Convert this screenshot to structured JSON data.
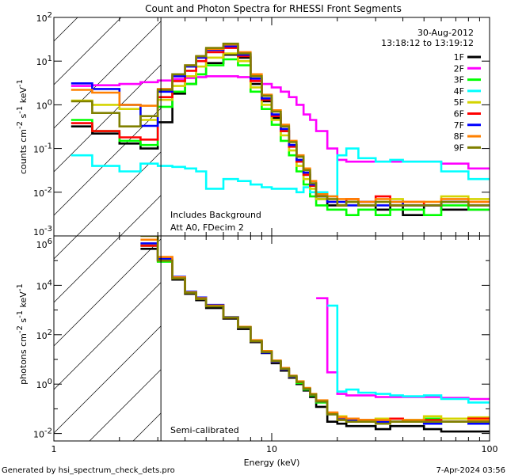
{
  "chart_data": {
    "title": "Count and Photon Spectra for RHESSI Front Segments",
    "date": "30-Aug-2012",
    "time_range": "13:18:12 to 13:19:12",
    "xlabel": "Energy (keV)",
    "xscale": "log",
    "xlim": [
      1,
      100
    ],
    "x_ticks": [
      "1",
      "10",
      "100"
    ],
    "footer_left": "Generated by hsi_spectrum_check_dets.pro",
    "footer_right": "7-Apr-2024 03:56",
    "legend_placement": "top-right",
    "energy_edges": [
      1.2,
      1.5,
      2,
      2.5,
      3,
      3.5,
      4,
      4.5,
      5,
      6,
      7,
      8,
      9,
      10,
      11,
      12,
      13,
      14,
      15,
      16,
      18,
      20,
      22,
      25,
      30,
      35,
      40,
      50,
      60,
      80,
      100
    ],
    "attenuator_boundary_keV": 3.1,
    "series_meta": [
      {
        "name": "1F",
        "color": "#000000"
      },
      {
        "name": "2F",
        "color": "#ff00ff"
      },
      {
        "name": "3F",
        "color": "#00ff00"
      },
      {
        "name": "4F",
        "color": "#00ffff"
      },
      {
        "name": "5F",
        "color": "#d4d400"
      },
      {
        "name": "6F",
        "color": "#ff0000"
      },
      {
        "name": "7F",
        "color": "#0000ff"
      },
      {
        "name": "8F",
        "color": "#ff8000"
      },
      {
        "name": "9F",
        "color": "#808000"
      }
    ],
    "panels": [
      {
        "type": "line",
        "step": true,
        "ylabel": {
          "a": "counts cm",
          "b": "-2",
          "c": " s",
          "d": "-1",
          "e": " keV",
          "f": "-1"
        },
        "yscale": "log",
        "ylim": [
          0.001,
          100
        ],
        "y_ticks": [
          {
            "base": "10",
            "exp": "2"
          },
          {
            "base": "10",
            "exp": "1"
          },
          {
            "base": "10",
            "exp": "0"
          },
          {
            "base": "10",
            "exp": "-1"
          },
          {
            "base": "10",
            "exp": "-2"
          },
          {
            "base": "10",
            "exp": "-3"
          }
        ],
        "annotations": [
          "Includes Background",
          "Att A0, FDecim 2"
        ],
        "series": [
          {
            "name": "1F",
            "values": [
              0.32,
              0.22,
              0.13,
              0.1,
              0.4,
              1.8,
              3,
              5,
              9,
              14,
              12,
              3,
              1.2,
              0.5,
              0.25,
              0.12,
              0.05,
              0.025,
              0.014,
              0.007,
              0.005,
              0.005,
              0.006,
              0.005,
              0.004,
              0.005,
              0.003,
              0.005,
              0.004,
              0.004
            ]
          },
          {
            "name": "2F",
            "values": [
              2.7,
              2.8,
              3,
              3.3,
              3.6,
              3.9,
              4.1,
              4.3,
              4.5,
              4.5,
              4.3,
              3.6,
              3,
              2.5,
              2,
              1.5,
              1.0,
              0.6,
              0.45,
              0.25,
              0.1,
              0.055,
              0.05,
              0.05,
              0.05,
              0.05,
              0.05,
              0.05,
              0.045,
              0.035
            ]
          },
          {
            "name": "3F",
            "values": [
              0.45,
              0.25,
              0.15,
              0.12,
              0.9,
              2,
              3,
              5,
              8,
              11,
              8,
              2,
              0.8,
              0.35,
              0.15,
              0.07,
              0.03,
              0.015,
              0.008,
              0.005,
              0.004,
              0.004,
              0.003,
              0.004,
              0.003,
              0.004,
              0.004,
              0.003,
              0.005,
              0.004
            ]
          },
          {
            "name": "4F",
            "values": [
              0.07,
              0.04,
              0.03,
              0.045,
              0.04,
              0.038,
              0.035,
              0.03,
              0.012,
              0.02,
              0.018,
              0.015,
              0.013,
              0.012,
              0.012,
              0.012,
              0.01,
              0.013,
              0.01,
              0.01,
              0.008,
              0.07,
              0.1,
              0.06,
              0.05,
              0.055,
              0.05,
              0.05,
              0.03,
              0.02
            ]
          },
          {
            "name": "5F",
            "values": [
              1.25,
              1.0,
              0.8,
              0.45,
              1.3,
              2.7,
              4.5,
              7.5,
              12,
              15,
              10,
              2.5,
              1,
              0.45,
              0.2,
              0.09,
              0.04,
              0.02,
              0.012,
              0.007,
              0.006,
              0.006,
              0.006,
              0.005,
              0.006,
              0.007,
              0.005,
              0.006,
              0.008,
              0.007
            ]
          },
          {
            "name": "6F",
            "values": [
              0.38,
              0.25,
              0.18,
              0.16,
              1.5,
              3.5,
              6,
              10,
              16,
              20,
              13,
              3.5,
              1.3,
              0.55,
              0.25,
              0.11,
              0.05,
              0.025,
              0.014,
              0.008,
              0.006,
              0.005,
              0.007,
              0.006,
              0.008,
              0.005,
              0.006,
              0.005,
              0.006,
              0.006
            ]
          },
          {
            "name": "7F",
            "values": [
              3.1,
              2.3,
              1.0,
              0.33,
              2,
              4.5,
              7.5,
              12,
              18,
              22,
              14,
              4,
              1.4,
              0.6,
              0.28,
              0.12,
              0.055,
              0.028,
              0.015,
              0.008,
              0.006,
              0.006,
              0.005,
              0.006,
              0.005,
              0.006,
              0.005,
              0.005,
              0.006,
              0.005
            ]
          },
          {
            "name": "8F",
            "values": [
              2.2,
              1.9,
              1.0,
              0.95,
              2.3,
              5,
              8,
              13,
              19,
              24,
              16,
              5,
              1.7,
              0.75,
              0.35,
              0.15,
              0.07,
              0.035,
              0.018,
              0.009,
              0.008,
              0.007,
              0.007,
              0.006,
              0.007,
              0.006,
              0.006,
              0.006,
              0.007,
              0.006
            ]
          },
          {
            "name": "9F",
            "values": [
              1.2,
              0.65,
              0.32,
              0.55,
              2.2,
              5,
              8,
              13,
              20,
              25,
              15,
              4.5,
              1.6,
              0.7,
              0.32,
              0.14,
              0.065,
              0.032,
              0.016,
              0.008,
              0.007,
              0.005,
              0.006,
              0.005,
              0.006,
              0.005,
              0.005,
              0.005,
              0.006,
              0.005
            ]
          }
        ]
      },
      {
        "type": "line",
        "step": true,
        "ylabel": {
          "a": "photons cm",
          "b": "-2",
          "c": " s",
          "d": "-1",
          "e": " keV",
          "f": "-1"
        },
        "yscale": "log",
        "ylim": [
          0.005,
          1000000
        ],
        "y_ticks": [
          {
            "base": "10",
            "exp": "6"
          },
          {
            "base": "10",
            "exp": "4"
          },
          {
            "base": "10",
            "exp": "2"
          },
          {
            "base": "10",
            "exp": "0"
          },
          {
            "base": "10",
            "exp": "-2"
          }
        ],
        "annotations": [
          "Semi-calibrated"
        ],
        "series": [
          {
            "name": "1F",
            "values": [
              null,
              null,
              null,
              300000,
              100000,
              17000,
              4500,
              2500,
              1200,
              450,
              170,
              50,
              18,
              7,
              3.5,
              1.8,
              1.0,
              0.55,
              0.3,
              0.12,
              0.03,
              0.025,
              0.02,
              0.02,
              0.015,
              0.02,
              0.02,
              0.015,
              0.012,
              0.012
            ]
          },
          {
            "name": "2F",
            "values": [
              null,
              null,
              null,
              null,
              null,
              null,
              null,
              null,
              null,
              null,
              null,
              null,
              null,
              null,
              null,
              null,
              null,
              null,
              null,
              3000,
              3,
              0.4,
              0.35,
              0.35,
              0.3,
              0.3,
              0.3,
              0.3,
              0.28,
              0.25
            ]
          },
          {
            "name": "3F",
            "values": [
              null,
              null,
              null,
              400000,
              90000,
              20000,
              5000,
              3000,
              1500,
              500,
              200,
              55,
              20,
              8,
              4,
              2,
              1.1,
              0.6,
              0.35,
              0.18,
              0.06,
              0.04,
              0.03,
              0.035,
              0.04,
              0.03,
              0.035,
              0.04,
              0.03,
              0.035
            ]
          },
          {
            "name": "4F",
            "values": [
              null,
              null,
              null,
              null,
              null,
              null,
              null,
              null,
              null,
              null,
              null,
              null,
              null,
              null,
              null,
              null,
              null,
              null,
              null,
              null,
              1500,
              0.5,
              0.6,
              0.45,
              0.4,
              0.35,
              0.32,
              0.35,
              0.25,
              0.18
            ]
          },
          {
            "name": "5F",
            "values": [
              null,
              null,
              null,
              450000,
              110000,
              20000,
              5000,
              3000,
              1500,
              500,
              200,
              55,
              20,
              8,
              4,
              2,
              1.2,
              0.65,
              0.38,
              0.2,
              0.07,
              0.05,
              0.04,
              0.035,
              0.04,
              0.04,
              0.035,
              0.05,
              0.04,
              0.045
            ]
          },
          {
            "name": "6F",
            "values": [
              null,
              null,
              null,
              400000,
              110000,
              20000,
              5000,
              3000,
              1500,
              500,
              200,
              55,
              20,
              8,
              4,
              2,
              1.2,
              0.65,
              0.38,
              0.2,
              0.07,
              0.04,
              0.04,
              0.035,
              0.03,
              0.04,
              0.03,
              0.035,
              0.03,
              0.04
            ]
          },
          {
            "name": "7F",
            "values": [
              null,
              null,
              null,
              500000,
              120000,
              22000,
              5500,
              3200,
              1600,
              520,
              200,
              55,
              19,
              8,
              4,
              2,
              1.2,
              0.65,
              0.38,
              0.2,
              0.06,
              0.04,
              0.035,
              0.03,
              0.03,
              0.03,
              0.03,
              0.025,
              0.03,
              0.025
            ]
          },
          {
            "name": "8F",
            "values": [
              null,
              null,
              null,
              700000,
              140000,
              21000,
              5200,
              3000,
              1500,
              500,
              210,
              60,
              22,
              9,
              4.5,
              2.2,
              1.3,
              0.7,
              0.4,
              0.22,
              0.07,
              0.045,
              0.04,
              0.035,
              0.035,
              0.03,
              0.035,
              0.03,
              0.03,
              0.035
            ]
          },
          {
            "name": "9F",
            "values": [
              null,
              null,
              null,
              1000000,
              100000,
              19000,
              5000,
              2800,
              1400,
              500,
              200,
              55,
              20,
              8.5,
              4.2,
              2.1,
              1.2,
              0.65,
              0.38,
              0.2,
              0.06,
              0.035,
              0.03,
              0.03,
              0.025,
              0.03,
              0.03,
              0.03,
              0.03,
              0.03
            ]
          }
        ]
      }
    ]
  }
}
